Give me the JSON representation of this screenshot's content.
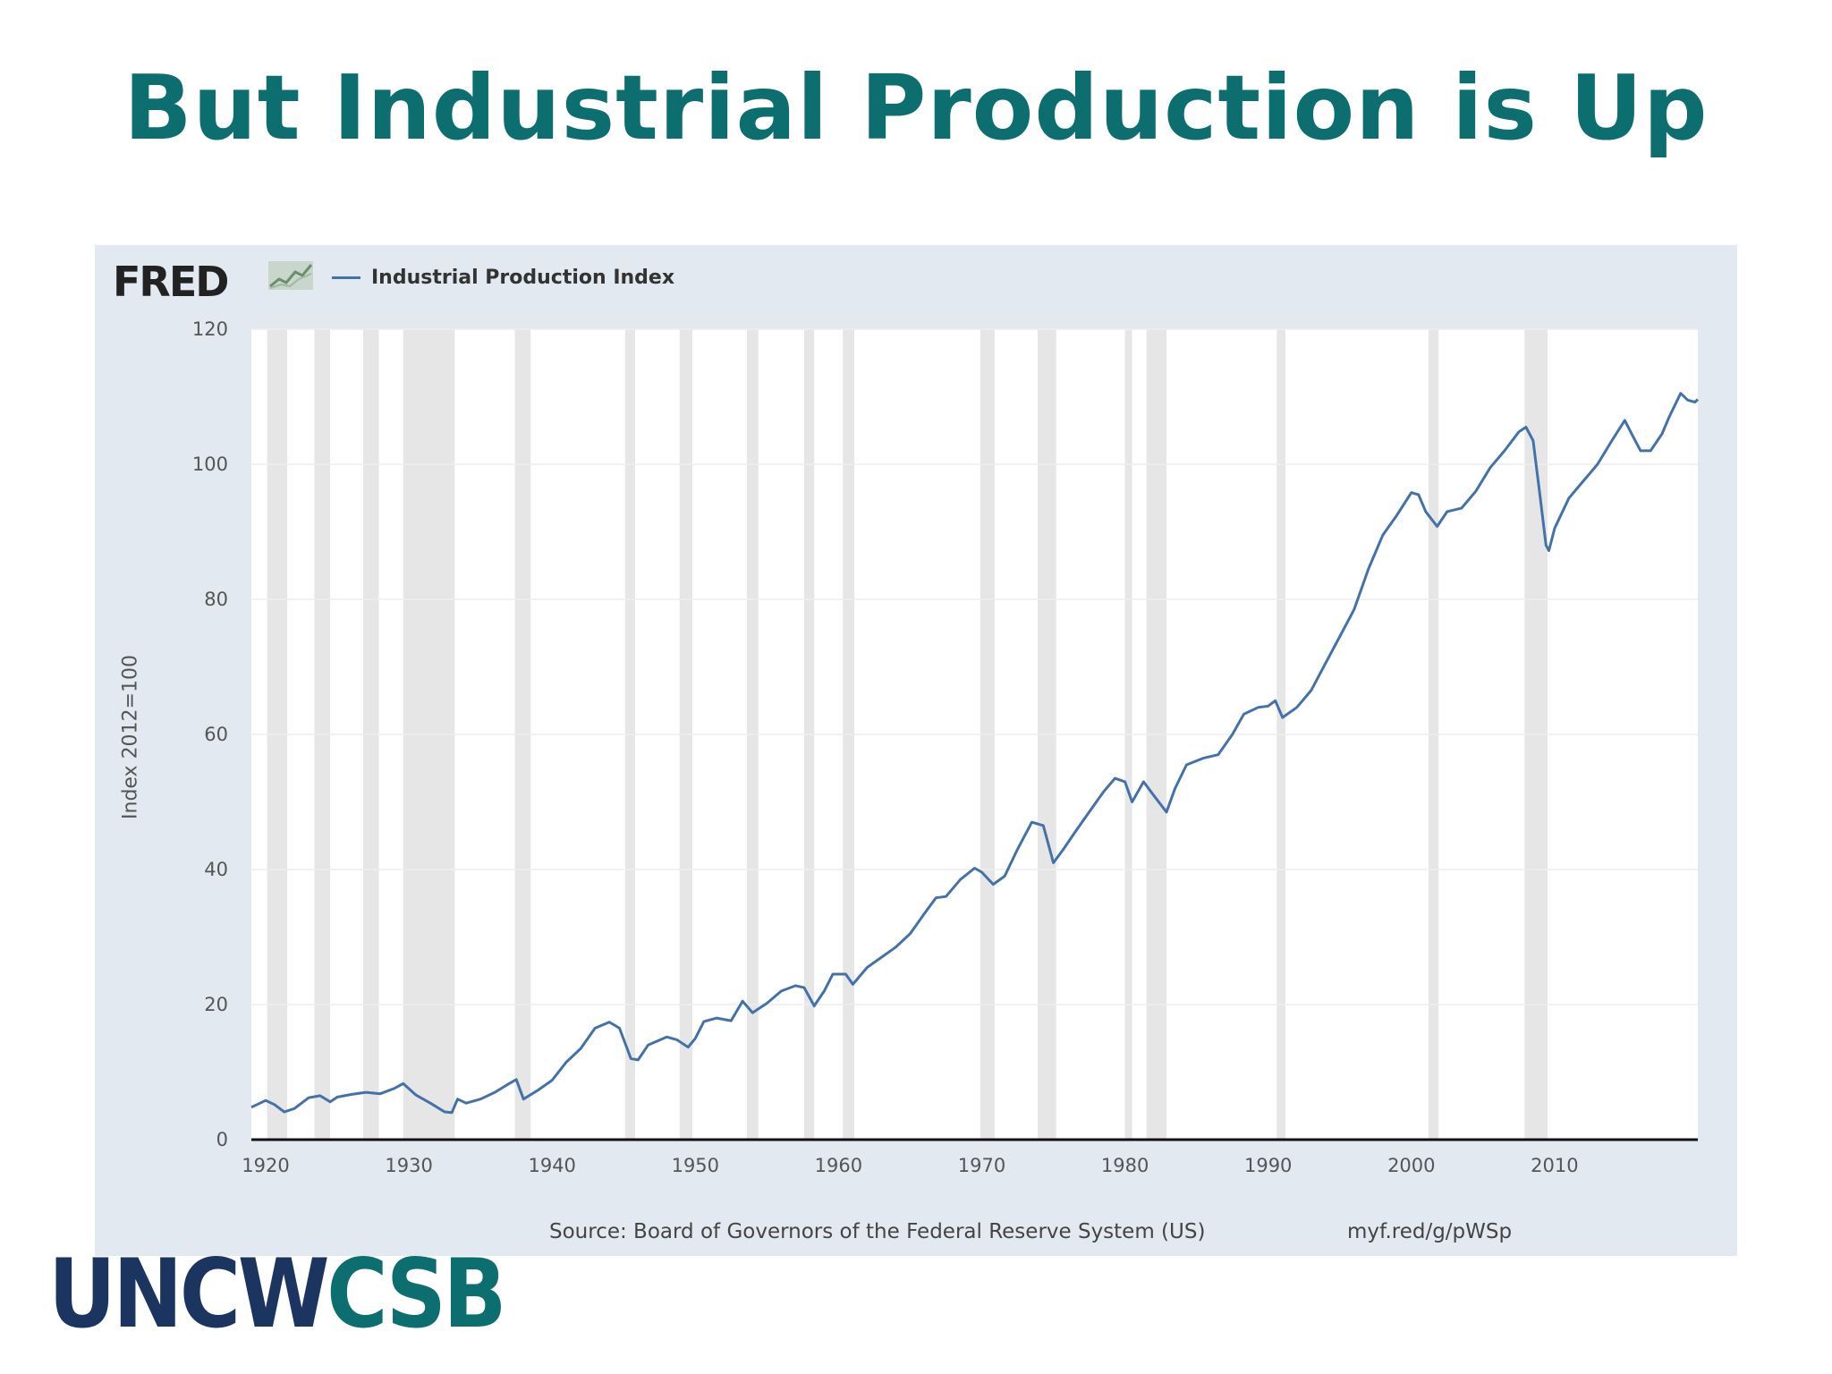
{
  "slide": {
    "title": "But Industrial Production is Up",
    "brand_part1": "UNCW",
    "brand_part2": "CSB",
    "brand_colors": {
      "primary": "#1c3560",
      "accent": "#0d6e70"
    }
  },
  "fred": {
    "logo_text": "FRED",
    "logo_icon": "fred-graph-icon",
    "source": "Source: Board of Governors of the Federal Reserve System (US)",
    "link": "myf.red/g/pWSp"
  },
  "chart_data": {
    "type": "line",
    "title": "",
    "xlabel": "",
    "ylabel": "Index 2012=100",
    "xlim": [
      1919,
      2020
    ],
    "ylim": [
      0,
      120
    ],
    "x_ticks": [
      "1920",
      "1930",
      "1940",
      "1950",
      "1960",
      "1970",
      "1980",
      "1990",
      "2000",
      "2010"
    ],
    "y_ticks": [
      "0",
      "20",
      "40",
      "60",
      "80",
      "100",
      "120"
    ],
    "grid": true,
    "legend_position": "top-left",
    "series": [
      {
        "name": "Industrial Production Index",
        "color": "#4472a8",
        "points": [
          [
            1919.0,
            4.8
          ],
          [
            1920.0,
            5.8
          ],
          [
            1920.6,
            5.2
          ],
          [
            1921.3,
            4.1
          ],
          [
            1922.0,
            4.6
          ],
          [
            1923.0,
            6.2
          ],
          [
            1923.8,
            6.5
          ],
          [
            1924.5,
            5.6
          ],
          [
            1925.0,
            6.3
          ],
          [
            1926.0,
            6.7
          ],
          [
            1927.0,
            7.0
          ],
          [
            1928.0,
            6.8
          ],
          [
            1929.0,
            7.6
          ],
          [
            1929.6,
            8.3
          ],
          [
            1930.5,
            6.6
          ],
          [
            1931.5,
            5.4
          ],
          [
            1932.5,
            4.1
          ],
          [
            1933.0,
            4.0
          ],
          [
            1933.4,
            6.0
          ],
          [
            1934.0,
            5.4
          ],
          [
            1935.0,
            6.0
          ],
          [
            1936.0,
            7.0
          ],
          [
            1937.0,
            8.3
          ],
          [
            1937.5,
            8.9
          ],
          [
            1938.0,
            6.0
          ],
          [
            1939.0,
            7.3
          ],
          [
            1940.0,
            8.8
          ],
          [
            1941.0,
            11.5
          ],
          [
            1942.0,
            13.5
          ],
          [
            1943.0,
            16.5
          ],
          [
            1944.0,
            17.4
          ],
          [
            1944.7,
            16.5
          ],
          [
            1945.5,
            12.0
          ],
          [
            1946.0,
            11.8
          ],
          [
            1946.7,
            14.0
          ],
          [
            1948.0,
            15.2
          ],
          [
            1948.7,
            14.8
          ],
          [
            1949.5,
            13.7
          ],
          [
            1950.0,
            15.0
          ],
          [
            1950.6,
            17.5
          ],
          [
            1951.5,
            18.0
          ],
          [
            1952.5,
            17.6
          ],
          [
            1953.3,
            20.5
          ],
          [
            1954.0,
            18.8
          ],
          [
            1955.0,
            20.2
          ],
          [
            1956.0,
            22.0
          ],
          [
            1957.0,
            22.8
          ],
          [
            1957.6,
            22.5
          ],
          [
            1958.3,
            19.8
          ],
          [
            1959.0,
            22.0
          ],
          [
            1959.6,
            24.5
          ],
          [
            1960.5,
            24.5
          ],
          [
            1961.0,
            23.0
          ],
          [
            1962.0,
            25.5
          ],
          [
            1963.0,
            27.0
          ],
          [
            1964.0,
            28.5
          ],
          [
            1965.0,
            30.5
          ],
          [
            1966.0,
            33.5
          ],
          [
            1966.8,
            35.8
          ],
          [
            1967.5,
            36.0
          ],
          [
            1968.5,
            38.5
          ],
          [
            1969.5,
            40.2
          ],
          [
            1970.0,
            39.6
          ],
          [
            1970.8,
            37.8
          ],
          [
            1971.6,
            39.0
          ],
          [
            1972.5,
            43.0
          ],
          [
            1973.5,
            47.0
          ],
          [
            1974.3,
            46.5
          ],
          [
            1975.0,
            41.0
          ],
          [
            1975.7,
            43.0
          ],
          [
            1976.5,
            45.5
          ],
          [
            1977.5,
            48.5
          ],
          [
            1978.5,
            51.5
          ],
          [
            1979.3,
            53.5
          ],
          [
            1980.0,
            53.0
          ],
          [
            1980.5,
            50.0
          ],
          [
            1981.3,
            53.0
          ],
          [
            1982.0,
            51.0
          ],
          [
            1982.9,
            48.5
          ],
          [
            1983.5,
            52.0
          ],
          [
            1984.3,
            55.5
          ],
          [
            1985.5,
            56.5
          ],
          [
            1986.5,
            57.0
          ],
          [
            1987.5,
            60.0
          ],
          [
            1988.3,
            63.0
          ],
          [
            1989.3,
            64.0
          ],
          [
            1990.0,
            64.2
          ],
          [
            1990.5,
            65.0
          ],
          [
            1991.0,
            62.5
          ],
          [
            1992.0,
            64.0
          ],
          [
            1993.0,
            66.5
          ],
          [
            1994.0,
            70.5
          ],
          [
            1995.0,
            74.5
          ],
          [
            1996.0,
            78.5
          ],
          [
            1997.0,
            84.5
          ],
          [
            1998.0,
            89.5
          ],
          [
            1999.0,
            92.5
          ],
          [
            2000.0,
            95.8
          ],
          [
            2000.5,
            95.5
          ],
          [
            2001.0,
            93.0
          ],
          [
            2001.8,
            90.8
          ],
          [
            2002.5,
            93.0
          ],
          [
            2003.5,
            93.5
          ],
          [
            2004.5,
            96.0
          ],
          [
            2005.5,
            99.5
          ],
          [
            2006.5,
            102.0
          ],
          [
            2007.5,
            104.8
          ],
          [
            2008.0,
            105.5
          ],
          [
            2008.5,
            103.5
          ],
          [
            2009.0,
            95.0
          ],
          [
            2009.4,
            88.0
          ],
          [
            2009.6,
            87.2
          ],
          [
            2010.0,
            90.5
          ],
          [
            2011.0,
            95.0
          ],
          [
            2012.0,
            97.5
          ],
          [
            2013.0,
            100.0
          ],
          [
            2014.0,
            103.5
          ],
          [
            2014.9,
            106.5
          ],
          [
            2015.5,
            104.0
          ],
          [
            2016.0,
            102.0
          ],
          [
            2016.7,
            102.0
          ],
          [
            2017.5,
            104.5
          ],
          [
            2018.0,
            107.0
          ],
          [
            2018.8,
            110.5
          ],
          [
            2019.3,
            109.5
          ],
          [
            2019.8,
            109.2
          ],
          [
            2020.0,
            109.6
          ]
        ]
      }
    ],
    "recessions": [
      [
        1920.1,
        1921.5
      ],
      [
        1923.4,
        1924.5
      ],
      [
        1926.8,
        1927.9
      ],
      [
        1929.6,
        1933.2
      ],
      [
        1937.4,
        1938.5
      ],
      [
        1945.1,
        1945.8
      ],
      [
        1948.9,
        1949.8
      ],
      [
        1953.6,
        1954.4
      ],
      [
        1957.6,
        1958.3
      ],
      [
        1960.3,
        1961.1
      ],
      [
        1969.9,
        1970.9
      ],
      [
        1973.9,
        1975.2
      ],
      [
        1980.0,
        1980.5
      ],
      [
        1981.5,
        1982.9
      ],
      [
        1990.6,
        1991.2
      ],
      [
        2001.2,
        2001.9
      ],
      [
        2007.9,
        2009.5
      ]
    ]
  }
}
